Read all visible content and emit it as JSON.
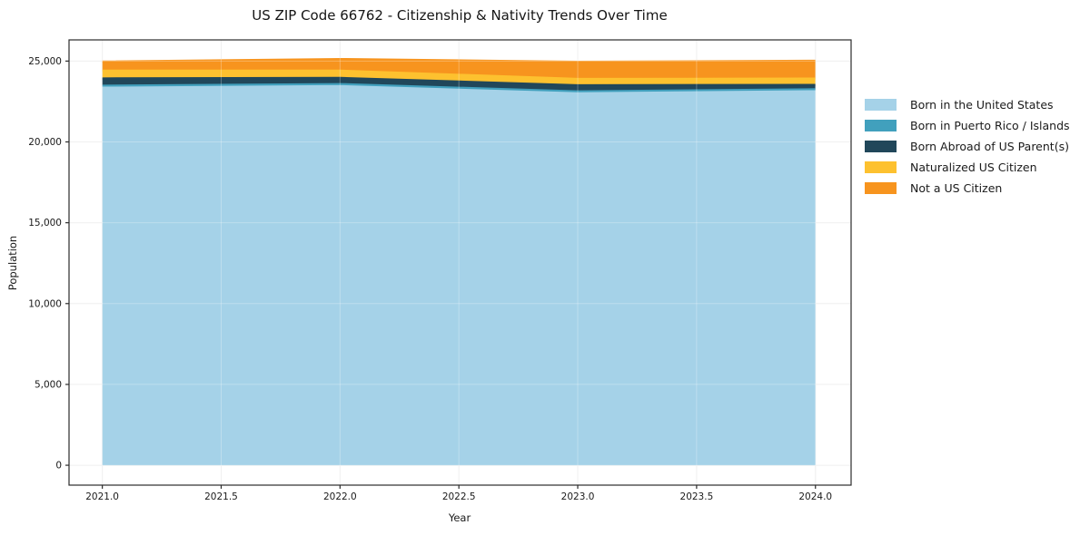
{
  "chart_data": {
    "type": "area",
    "stacked": true,
    "title": "US ZIP Code 66762 - Citizenship & Nativity Trends Over Time",
    "xlabel": "Year",
    "ylabel": "Population",
    "x": [
      2021,
      2022,
      2023,
      2024
    ],
    "series": [
      {
        "name": "Born in the United States",
        "color": "#A5D2E8",
        "values": [
          23450,
          23550,
          23100,
          23230
        ]
      },
      {
        "name": "Born in Puerto Rico / Islands",
        "color": "#41A0BD",
        "values": [
          30,
          30,
          30,
          30
        ]
      },
      {
        "name": "Born Abroad of US Parent(s)",
        "color": "#21475A",
        "values": [
          450,
          380,
          380,
          270
        ]
      },
      {
        "name": "Naturalized US Citizen",
        "color": "#FDC12F",
        "values": [
          480,
          450,
          390,
          390
        ]
      },
      {
        "name": "Not a US Citizen",
        "color": "#F7941E",
        "values": [
          560,
          720,
          1060,
          1100
        ]
      }
    ],
    "xticks": {
      "values": [
        2021.0,
        2021.5,
        2022.0,
        2022.5,
        2023.0,
        2023.5,
        2024.0
      ],
      "labels": [
        "2021.0",
        "2021.5",
        "2022.0",
        "2022.5",
        "2023.0",
        "2023.5",
        "2024.0"
      ]
    },
    "yticks": {
      "values": [
        0,
        5000,
        10000,
        15000,
        20000,
        25000
      ],
      "labels": [
        "0",
        "5,000",
        "10,000",
        "15,000",
        "20,000",
        "25,000"
      ]
    },
    "xlim": [
      2020.86,
      2024.15
    ],
    "ylim": [
      -1230,
      26310
    ],
    "grid": true,
    "legend_position": "right"
  },
  "colors": {
    "background": "#ffffff",
    "grid": "#ebebeb",
    "spine": "#2b2b2b",
    "text": "#1a1a1a"
  }
}
